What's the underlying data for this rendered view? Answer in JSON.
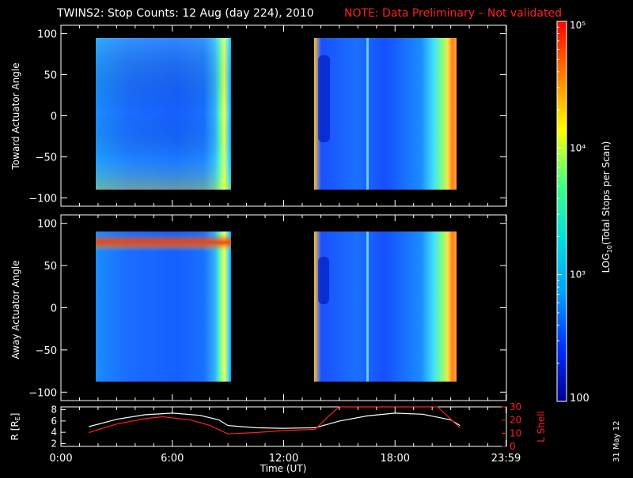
{
  "title": {
    "main": "TWINS2: Stop Counts: 12 Aug (day 224), 2010",
    "note": "NOTE: Data Preliminary – Not validated"
  },
  "colorbar": {
    "label": "LOG10(Total Stops per Scan)",
    "label_prefix": "LOG",
    "label_sub": "10",
    "label_suffix": "(Total Stops per Scan)",
    "ticks": [
      "100",
      "10³",
      "10⁴",
      "10⁵"
    ],
    "tick_values": [
      100,
      1000,
      10000,
      100000
    ],
    "range": [
      100,
      100000
    ],
    "scale": "log",
    "colors": [
      "#000090",
      "#0030ff",
      "#00a0ff",
      "#00e0e0",
      "#40ff80",
      "#ffff00",
      "#ff8000",
      "#ff0000"
    ]
  },
  "date_stamp": "31 May 12",
  "chart_data": [
    {
      "type": "heatmap",
      "ylabel": "Toward Actuator Angle",
      "ylim": [
        -110,
        110
      ],
      "yticks": [
        "100",
        "50",
        "0",
        "−50",
        "−100"
      ],
      "ytick_values": [
        100,
        50,
        0,
        -50,
        -100
      ],
      "xlim": [
        0,
        24
      ],
      "data_blocks": [
        {
          "x_start_hr": 1.5,
          "x_end_hr": 9.0,
          "y_range": [
            -90,
            90
          ]
        },
        {
          "x_start_hr": 13.7,
          "x_end_hr": 21.5,
          "y_range": [
            -90,
            90
          ]
        }
      ]
    },
    {
      "type": "heatmap",
      "ylabel": "Away Actuator Angle",
      "ylim": [
        -110,
        110
      ],
      "yticks": [
        "100",
        "50",
        "0",
        "−50",
        "−100"
      ],
      "ytick_values": [
        100,
        50,
        0,
        -50,
        -100
      ],
      "xlim": [
        0,
        24
      ],
      "data_blocks": [
        {
          "x_start_hr": 1.5,
          "x_end_hr": 9.0,
          "y_range": [
            -90,
            90
          ]
        },
        {
          "x_start_hr": 13.7,
          "x_end_hr": 21.5,
          "y_range": [
            -90,
            90
          ]
        }
      ]
    },
    {
      "type": "line",
      "ylabel": "R [RE]",
      "ylabel_prefix": "R [R",
      "ylabel_sub": "E",
      "ylabel_suffix": "]",
      "y2label": "L Shell",
      "ylim": [
        1.5,
        8.5
      ],
      "y2lim": [
        0,
        30
      ],
      "yticks": [
        "8",
        "6",
        "4",
        "2"
      ],
      "ytick_values": [
        8,
        6,
        4,
        2
      ],
      "y2ticks": [
        "30",
        "20",
        "10",
        "0"
      ],
      "y2tick_values": [
        30,
        20,
        10,
        0
      ],
      "xlabel": "Time (UT)",
      "xticks": [
        "0:00",
        "6:00",
        "12:00",
        "18:00",
        "23:59"
      ],
      "xtick_values": [
        0,
        6,
        12,
        18,
        23.98
      ],
      "xlim": [
        0,
        24
      ],
      "series": [
        {
          "axis": "left",
          "color": "#ffffff",
          "x": [
            1.5,
            3.0,
            4.5,
            6.0,
            7.5,
            8.5,
            9.0,
            10.5,
            12.0,
            13.7,
            15.0,
            16.5,
            18.0,
            19.5,
            21.0,
            21.5
          ],
          "y": [
            5.0,
            6.3,
            7.1,
            7.4,
            7.0,
            6.2,
            5.2,
            4.8,
            4.7,
            4.8,
            6.0,
            6.9,
            7.4,
            7.2,
            6.2,
            5.2
          ]
        },
        {
          "axis": "right",
          "color": "#ff2020",
          "x": [
            1.5,
            3.0,
            4.5,
            5.5,
            7.0,
            8.0,
            9.0,
            10.5,
            12.0,
            13.7,
            14.5,
            15.0,
            20.3,
            21.5
          ],
          "y": [
            10.5,
            17.0,
            21.0,
            22.5,
            20.0,
            16.0,
            9.5,
            10.5,
            12.0,
            13.0,
            24.0,
            30.0,
            30.0,
            14.0
          ]
        }
      ]
    }
  ]
}
